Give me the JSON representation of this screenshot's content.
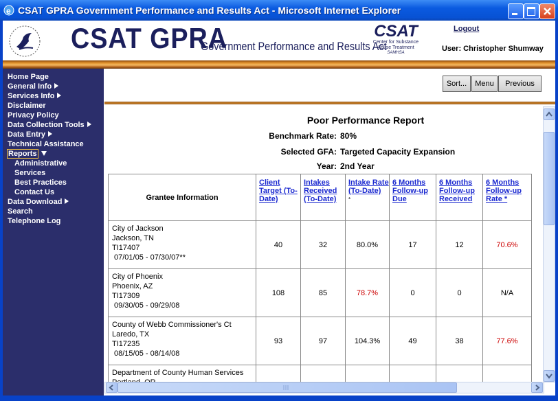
{
  "window": {
    "title": "CSAT GPRA Government Performance and Results Act - Microsoft Internet Explorer"
  },
  "header": {
    "app_name": "CSAT GPRA",
    "subtitle": "Government Performance and Results Act",
    "logo": {
      "name": "CSAT",
      "line1": "Center for Substance",
      "line2": "Abuse Treatment",
      "line3": "SAMHSA"
    },
    "logout": "Logout",
    "user": "User: Christopher Shumway"
  },
  "nav": {
    "items": [
      "Home Page",
      "General Info",
      "Services Info",
      "Disclaimer",
      "Privacy Policy",
      "Data Collection Tools",
      "Data Entry",
      "Technical Assistance",
      "Reports"
    ],
    "reports_menu": [
      "Administrative",
      "Services",
      "Best Practices",
      "Contact Us"
    ],
    "items_after": [
      "Data Download",
      "Search",
      "Telephone Log"
    ]
  },
  "toolbar": {
    "buttons": [
      "Sort...",
      "Menu",
      "Previous"
    ]
  },
  "report": {
    "title": "Poor Performance Report",
    "fields": [
      {
        "label": "Benchmark Rate:",
        "value": "80%"
      },
      {
        "label": "Selected GFA:",
        "value": "Targeted Capacity Expansion"
      },
      {
        "label": "Year:",
        "value": "2nd Year"
      }
    ],
    "table": {
      "columns": [
        "Grantee Information",
        "Client Target (To-Date)",
        "Intakes Received (To-Date)",
        "Intake Rate (To-Date)",
        "6 Months Follow-up Due",
        "6 Months Follow-up Received",
        "6 Months Follow-up Rate *"
      ],
      "intake_rate_note": "*",
      "rows": [
        {
          "grantee": [
            "City of Jackson",
            "Jackson, TN",
            "TI17407",
            "07/01/05 - 07/30/07**"
          ],
          "cells": [
            "40",
            "32",
            "80.0%",
            "17",
            "12",
            "70.6%"
          ]
        },
        {
          "grantee": [
            "City of Phoenix",
            "Phoenix, AZ",
            "TI17309",
            "09/30/05 - 09/29/08"
          ],
          "cells": [
            "108",
            "85",
            "78.7%",
            "0",
            "0",
            "N/A"
          ]
        },
        {
          "grantee": [
            "County of Webb Commissioner's Ct",
            "Laredo, TX",
            "TI17235",
            "08/15/05 - 08/14/08"
          ],
          "cells": [
            "93",
            "97",
            "104.3%",
            "49",
            "38",
            "77.6%"
          ]
        },
        {
          "grantee": [
            "Department of County Human Services",
            "Portland, OR"
          ],
          "cells": []
        }
      ]
    }
  }
}
